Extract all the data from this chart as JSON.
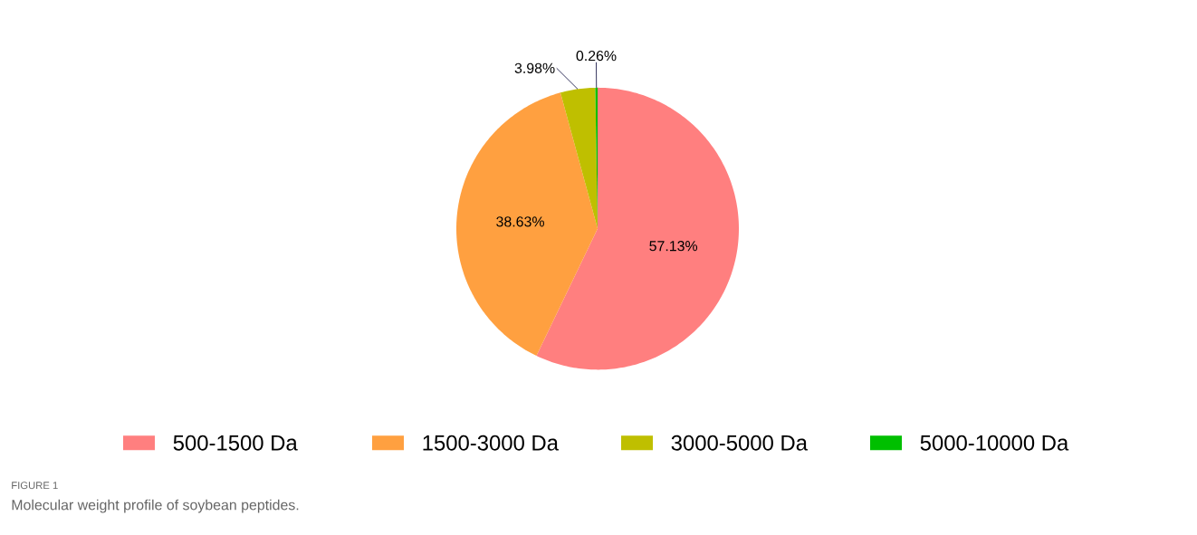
{
  "chart_data": {
    "type": "pie",
    "categories": [
      "500-1500 Da",
      "1500-3000 Da",
      "3000-5000 Da",
      "5000-10000 Da"
    ],
    "values": [
      57.13,
      38.63,
      3.98,
      0.26
    ],
    "value_labels": [
      "57.13%",
      "38.63%",
      "3.98%",
      "0.26%"
    ],
    "colors": [
      "#ff7f7f",
      "#ffa040",
      "#bfbf00",
      "#00bf00"
    ],
    "legend": "bottom",
    "annotations": [
      "FIGURE 1",
      "Molecular weight profile of soybean peptides."
    ]
  }
}
